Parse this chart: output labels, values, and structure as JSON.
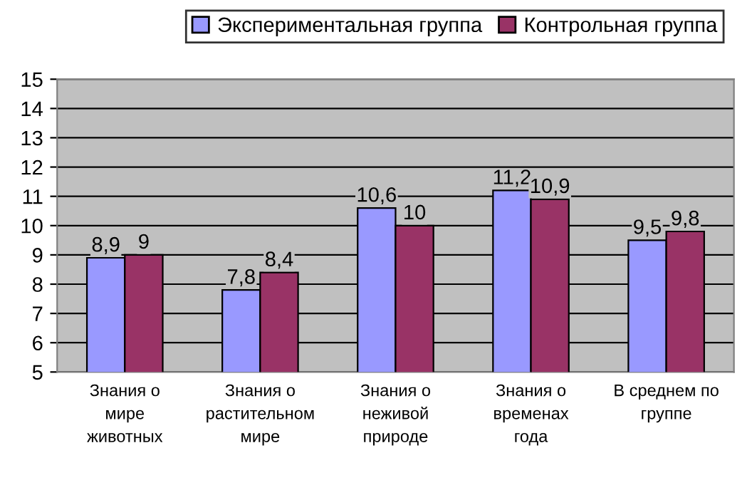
{
  "chart_data": {
    "type": "bar",
    "categories": [
      "Знания о\nмире\nживотных",
      "Знания о\nрастительном\nмире",
      "Знания о\nнеживой\nприроде",
      "Знания о\nвременах\nгода",
      "В среднем по\nгруппе"
    ],
    "series": [
      {
        "name": "Экспериментальная группа",
        "color": "#9999ff",
        "values": [
          8.9,
          7.8,
          10.6,
          11.2,
          9.5
        ],
        "value_labels": [
          "8,9",
          "7,8",
          "10,6",
          "11,2",
          "9,5"
        ]
      },
      {
        "name": "Контрольная группа",
        "color": "#993366",
        "values": [
          9,
          8.4,
          10,
          10.9,
          9.8
        ],
        "value_labels": [
          "9",
          "8,4",
          "10",
          "10,9",
          "9,8"
        ]
      }
    ],
    "ylim": [
      5,
      15
    ],
    "yticks": [
      5,
      6,
      7,
      8,
      9,
      10,
      11,
      12,
      13,
      14,
      15
    ],
    "grid": "y",
    "legend": "top right"
  }
}
